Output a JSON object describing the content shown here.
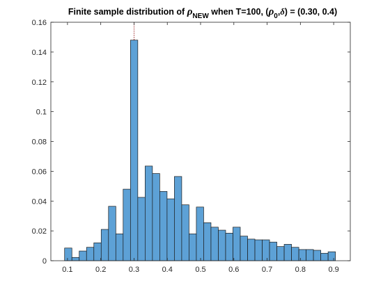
{
  "chart_data": {
    "type": "bar",
    "title_parts": {
      "prefix": "Finite sample distribution of ",
      "rho": "ρ",
      "new_sub": "NEW",
      "when": " when T=100, (",
      "rho0": "ρ",
      "zero_sub": "0",
      "comma": ",",
      "delta": "δ",
      "suffix": ") = (0.30, 0.4)"
    },
    "xlabel": "",
    "ylabel": "",
    "xlim": [
      0.05,
      0.95
    ],
    "ylim": [
      0,
      0.16
    ],
    "xticks": [
      "0.1",
      "0.2",
      "0.3",
      "0.4",
      "0.5",
      "0.6",
      "0.7",
      "0.8",
      "0.9"
    ],
    "yticks": [
      "0",
      "0.02",
      "0.04",
      "0.06",
      "0.08",
      "0.1",
      "0.12",
      "0.14",
      "0.16"
    ],
    "bin_width": 0.022,
    "bars": [
      {
        "x_start": 0.0913,
        "value": 0.0085
      },
      {
        "x_start": 0.1133,
        "value": 0.0022
      },
      {
        "x_start": 0.1353,
        "value": 0.0065
      },
      {
        "x_start": 0.1573,
        "value": 0.009
      },
      {
        "x_start": 0.1793,
        "value": 0.012
      },
      {
        "x_start": 0.2013,
        "value": 0.021
      },
      {
        "x_start": 0.2233,
        "value": 0.0365
      },
      {
        "x_start": 0.2453,
        "value": 0.018
      },
      {
        "x_start": 0.2673,
        "value": 0.048
      },
      {
        "x_start": 0.2893,
        "value": 0.148
      },
      {
        "x_start": 0.3113,
        "value": 0.0425
      },
      {
        "x_start": 0.3333,
        "value": 0.0635
      },
      {
        "x_start": 0.3553,
        "value": 0.0585
      },
      {
        "x_start": 0.3773,
        "value": 0.0465
      },
      {
        "x_start": 0.3993,
        "value": 0.0415
      },
      {
        "x_start": 0.4213,
        "value": 0.0565
      },
      {
        "x_start": 0.4433,
        "value": 0.0375
      },
      {
        "x_start": 0.4653,
        "value": 0.018
      },
      {
        "x_start": 0.4873,
        "value": 0.036
      },
      {
        "x_start": 0.5093,
        "value": 0.0255
      },
      {
        "x_start": 0.5313,
        "value": 0.0225
      },
      {
        "x_start": 0.5533,
        "value": 0.0205
      },
      {
        "x_start": 0.5753,
        "value": 0.0185
      },
      {
        "x_start": 0.5973,
        "value": 0.0225
      },
      {
        "x_start": 0.6193,
        "value": 0.0165
      },
      {
        "x_start": 0.6413,
        "value": 0.0145
      },
      {
        "x_start": 0.6633,
        "value": 0.014
      },
      {
        "x_start": 0.6853,
        "value": 0.014
      },
      {
        "x_start": 0.7073,
        "value": 0.0125
      },
      {
        "x_start": 0.7293,
        "value": 0.0095
      },
      {
        "x_start": 0.7513,
        "value": 0.011
      },
      {
        "x_start": 0.7733,
        "value": 0.009
      },
      {
        "x_start": 0.7953,
        "value": 0.0075
      },
      {
        "x_start": 0.8173,
        "value": 0.0075
      },
      {
        "x_start": 0.8393,
        "value": 0.007
      },
      {
        "x_start": 0.8613,
        "value": 0.005
      },
      {
        "x_start": 0.8833,
        "value": 0.006
      }
    ],
    "reference_line_x": 0.3,
    "grid": false,
    "colors": {
      "bar_fill": "#5da1d6",
      "bar_edge": "#1a1a1a",
      "axis": "#262626",
      "reference_line": "#8b0000"
    }
  }
}
